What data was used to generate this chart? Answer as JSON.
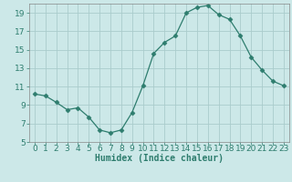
{
  "title": "",
  "xlabel": "Humidex (Indice chaleur)",
  "x": [
    0,
    1,
    2,
    3,
    4,
    5,
    6,
    7,
    8,
    9,
    10,
    11,
    12,
    13,
    14,
    15,
    16,
    17,
    18,
    19,
    20,
    21,
    22,
    23
  ],
  "y": [
    10.2,
    10.0,
    9.3,
    8.5,
    8.7,
    7.7,
    6.3,
    6.0,
    6.3,
    8.2,
    11.1,
    14.6,
    15.8,
    16.5,
    19.0,
    19.6,
    19.8,
    18.8,
    18.3,
    16.5,
    14.2,
    12.8,
    11.6,
    11.1
  ],
  "line_color": "#2e7d6e",
  "marker": "D",
  "marker_size": 2.5,
  "bg_color": "#cce8e8",
  "grid_color": "#aacccc",
  "ylim": [
    5,
    20
  ],
  "xlim": [
    -0.5,
    23.5
  ],
  "yticks": [
    5,
    7,
    9,
    11,
    13,
    15,
    17,
    19
  ],
  "xticks": [
    0,
    1,
    2,
    3,
    4,
    5,
    6,
    7,
    8,
    9,
    10,
    11,
    12,
    13,
    14,
    15,
    16,
    17,
    18,
    19,
    20,
    21,
    22,
    23
  ],
  "label_fontsize": 7,
  "tick_fontsize": 6.5
}
